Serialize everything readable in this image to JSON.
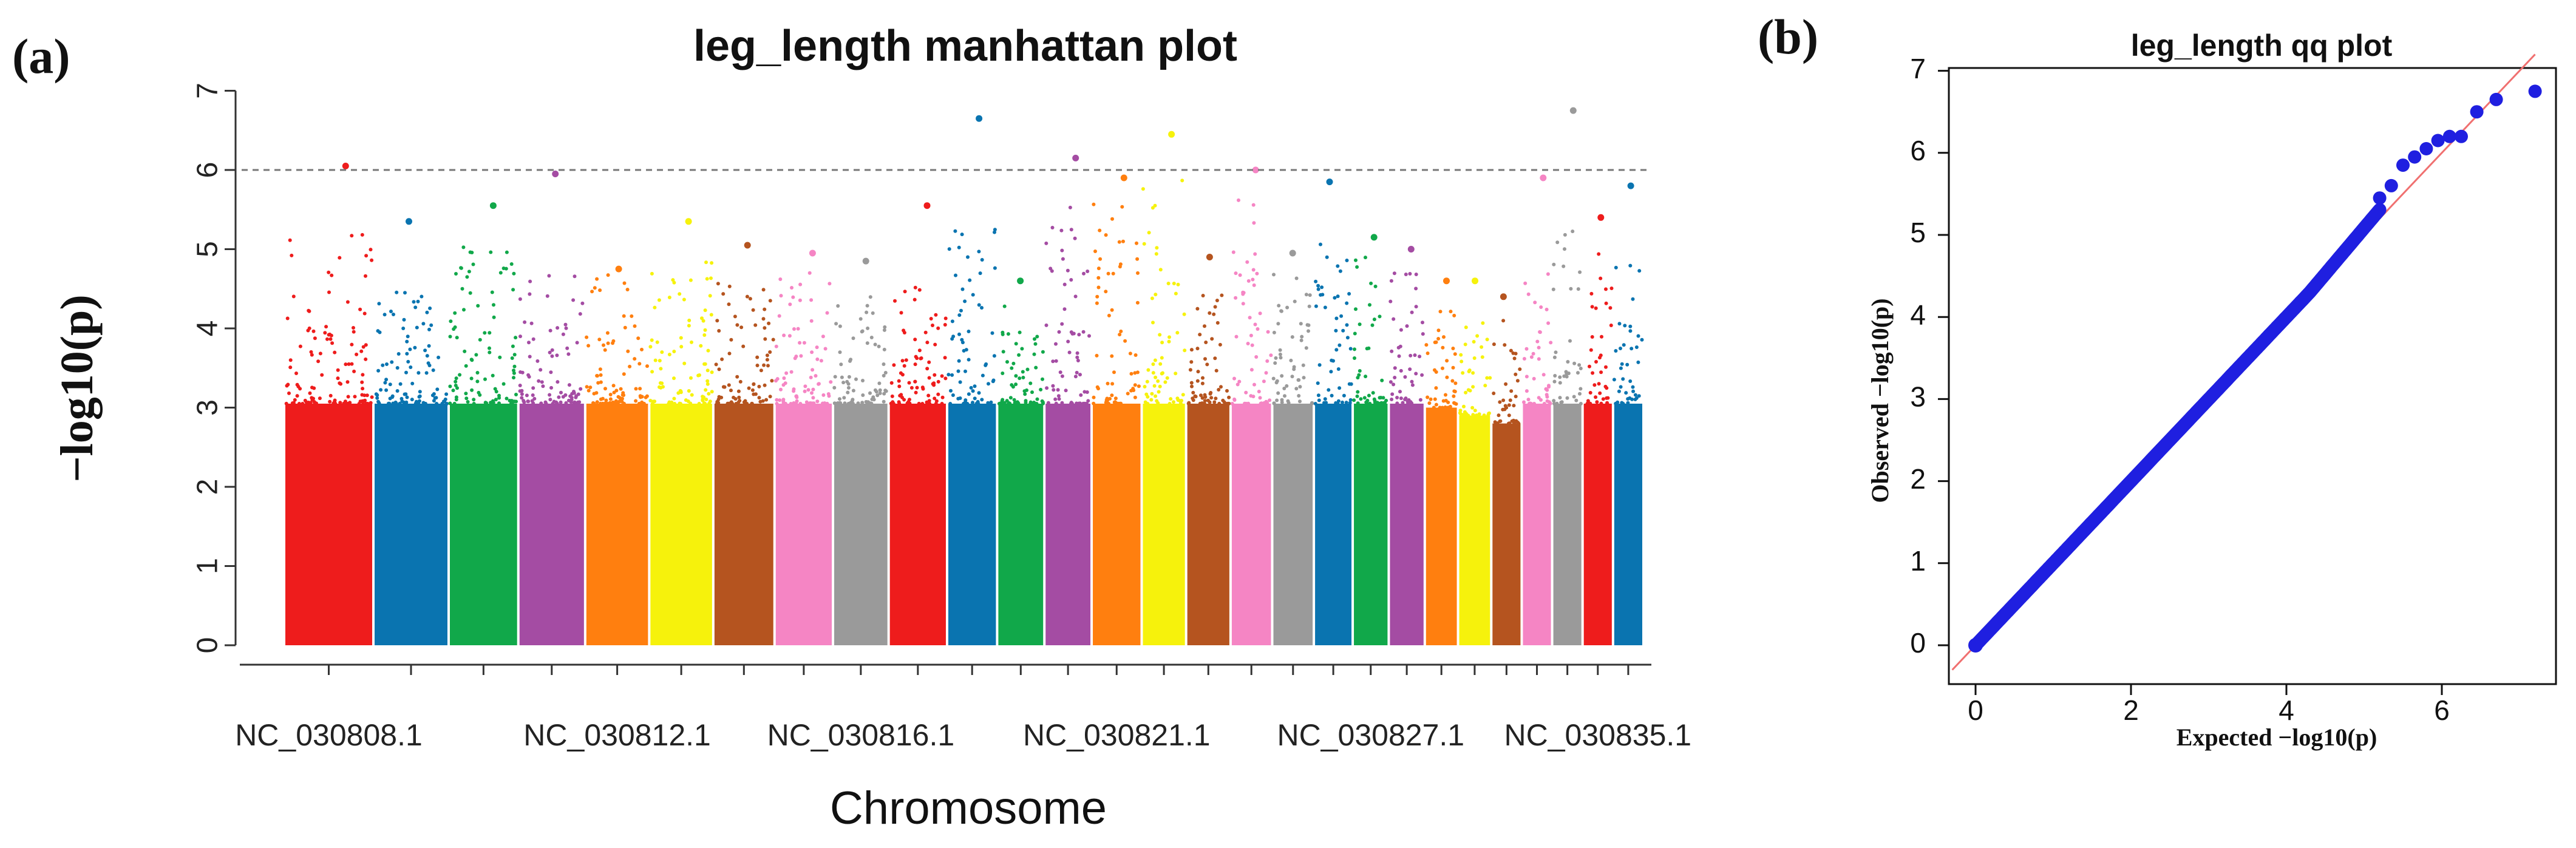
{
  "chart_data": [
    {
      "panel_label": "(a)",
      "type": "scatter",
      "title": "leg_length manhattan plot",
      "xlabel": "Chromosome",
      "ylabel": "−log10(p)",
      "ylim": [
        0,
        7.2
      ],
      "y_ticks": [
        0,
        1,
        2,
        3,
        4,
        5,
        6,
        7
      ],
      "significance_line": 6,
      "x_tick_labels": [
        "NC_030808.1",
        "NC_030812.1",
        "NC_030816.1",
        "NC_030821.1",
        "NC_030827.1",
        "NC_030835.1"
      ],
      "chromosomes": [
        {
          "index": 1,
          "color": "#ee1c1c",
          "peak": 6.05,
          "top": 5.3
        },
        {
          "index": 2,
          "color": "#0a74b0",
          "peak": 5.35,
          "top": 4.5
        },
        {
          "index": 3,
          "color": "#11a84a",
          "peak": 5.55,
          "top": 5.2
        },
        {
          "index": 4,
          "color": "#a44ca3",
          "peak": 5.95,
          "top": 4.8
        },
        {
          "index": 5,
          "color": "#ff7f0f",
          "peak": 4.75,
          "top": 4.7
        },
        {
          "index": 6,
          "color": "#f6f20c",
          "peak": 5.35,
          "top": 4.9
        },
        {
          "index": 7,
          "color": "#b5541f",
          "peak": 5.05,
          "top": 4.6
        },
        {
          "index": 8,
          "color": "#f585c4",
          "peak": 4.95,
          "top": 4.7
        },
        {
          "index": 9,
          "color": "#9a9a9a",
          "peak": 4.85,
          "top": 4.4
        },
        {
          "index": 10,
          "color": "#ee1c1c",
          "peak": 5.55,
          "top": 4.6
        },
        {
          "index": 11,
          "color": "#0a74b0",
          "peak": 6.65,
          "top": 5.4
        },
        {
          "index": 12,
          "color": "#11a84a",
          "peak": 4.6,
          "top": 4.4
        },
        {
          "index": 13,
          "color": "#a44ca3",
          "peak": 6.15,
          "top": 5.6
        },
        {
          "index": 14,
          "color": "#ff7f0f",
          "peak": 5.9,
          "top": 5.6
        },
        {
          "index": 15,
          "color": "#f6f20c",
          "peak": 6.45,
          "top": 5.9
        },
        {
          "index": 16,
          "color": "#b5541f",
          "peak": 4.9,
          "top": 4.6
        },
        {
          "index": 17,
          "color": "#f585c4",
          "peak": 6.0,
          "top": 5.8
        },
        {
          "index": 18,
          "color": "#9a9a9a",
          "peak": 4.95,
          "top": 4.7
        },
        {
          "index": 19,
          "color": "#0a74b0",
          "peak": 5.85,
          "top": 5.1
        },
        {
          "index": 20,
          "color": "#11a84a",
          "peak": 5.15,
          "top": 4.9
        },
        {
          "index": 21,
          "color": "#a44ca3",
          "peak": 5.0,
          "top": 4.8
        },
        {
          "index": 22,
          "color": "#ff7f0f",
          "peak": 4.6,
          "top": 4.3
        },
        {
          "index": 23,
          "color": "#f6f20c",
          "peak": 4.6,
          "top": 4.2
        },
        {
          "index": 24,
          "color": "#b5541f",
          "peak": 4.4,
          "top": 4.1
        },
        {
          "index": 25,
          "color": "#f585c4",
          "peak": 5.9,
          "top": 4.7
        },
        {
          "index": 26,
          "color": "#9a9a9a",
          "peak": 6.75,
          "top": 5.6
        },
        {
          "index": 27,
          "color": "#ee1c1c",
          "peak": 5.4,
          "top": 5.0
        },
        {
          "index": 28,
          "color": "#0a74b0",
          "peak": 5.8,
          "top": 4.8
        }
      ]
    },
    {
      "panel_label": "(b)",
      "type": "scatter",
      "title": "leg_length qq plot",
      "xlabel": "Expected −log10(p)",
      "ylabel": "Observed −log10(p)",
      "xlim": [
        0,
        7.3
      ],
      "ylim": [
        0,
        7
      ],
      "x_ticks": [
        0,
        2,
        4,
        6
      ],
      "y_ticks": [
        0,
        1,
        2,
        3,
        4,
        5,
        6,
        7
      ],
      "reference_line": "y = x",
      "tail_points": [
        {
          "x": 5.2,
          "y": 5.45
        },
        {
          "x": 5.35,
          "y": 5.6
        },
        {
          "x": 5.5,
          "y": 5.85
        },
        {
          "x": 5.65,
          "y": 5.95
        },
        {
          "x": 5.8,
          "y": 6.05
        },
        {
          "x": 5.95,
          "y": 6.15
        },
        {
          "x": 6.1,
          "y": 6.2
        },
        {
          "x": 6.25,
          "y": 6.2
        },
        {
          "x": 6.45,
          "y": 6.5
        },
        {
          "x": 6.7,
          "y": 6.65
        },
        {
          "x": 7.2,
          "y": 6.75
        }
      ]
    }
  ]
}
